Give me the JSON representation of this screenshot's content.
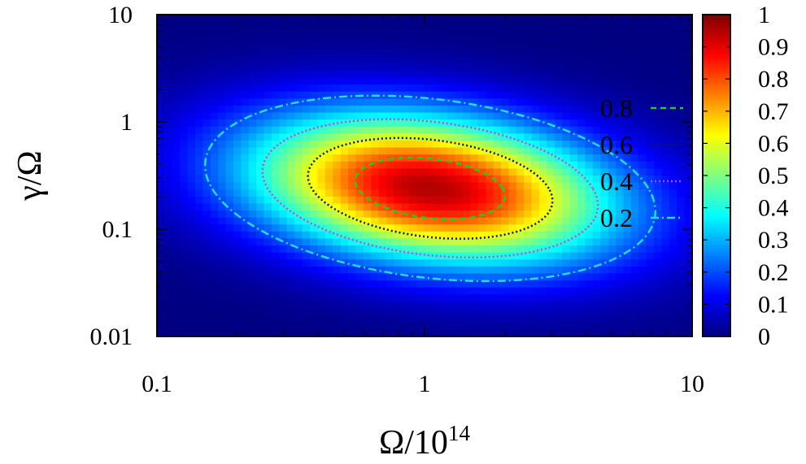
{
  "chart_data": {
    "type": "heatmap",
    "xlabel": "Ω/10",
    "xlabel_superscript": "14",
    "ylabel": "γ/Ω",
    "x_scale": "log",
    "y_scale": "log",
    "xlim": [
      0.1,
      10
    ],
    "ylim": [
      0.01,
      10
    ],
    "x_ticks": [
      {
        "value": 0.1,
        "label": "0.1"
      },
      {
        "value": 1,
        "label": "1"
      },
      {
        "value": 10,
        "label": "10"
      }
    ],
    "y_ticks": [
      {
        "value": 0.01,
        "label": "0.01"
      },
      {
        "value": 0.1,
        "label": "0.1"
      },
      {
        "value": 1,
        "label": "1"
      },
      {
        "value": 10,
        "label": "10"
      }
    ],
    "peak": {
      "x": 1.05,
      "y": 0.24,
      "value": 0.95
    },
    "colorbar": {
      "min": 0,
      "max": 1,
      "ticks": [
        {
          "value": 0,
          "label": "0"
        },
        {
          "value": 0.1,
          "label": "0.1"
        },
        {
          "value": 0.2,
          "label": "0.2"
        },
        {
          "value": 0.3,
          "label": "0.3"
        },
        {
          "value": 0.4,
          "label": "0.4"
        },
        {
          "value": 0.5,
          "label": "0.5"
        },
        {
          "value": 0.6,
          "label": "0.6"
        },
        {
          "value": 0.7,
          "label": "0.7"
        },
        {
          "value": 0.8,
          "label": "0.8"
        },
        {
          "value": 0.9,
          "label": "0.9"
        },
        {
          "value": 1,
          "label": "1"
        }
      ],
      "colormap": "jet"
    },
    "contours": [
      {
        "name": "0.8",
        "level": 0.8,
        "color": "#22cc22",
        "dash": "dashed"
      },
      {
        "name": "0.6",
        "level": 0.6,
        "color": "#14145a",
        "dash": "dotted"
      },
      {
        "name": "0.4",
        "level": 0.4,
        "color": "#cc44dd",
        "dash": "dotted"
      },
      {
        "name": "0.2",
        "level": 0.2,
        "color": "#22dddd",
        "dash": "dash-dot"
      }
    ],
    "legend_position": "right-inside",
    "grid": false
  }
}
